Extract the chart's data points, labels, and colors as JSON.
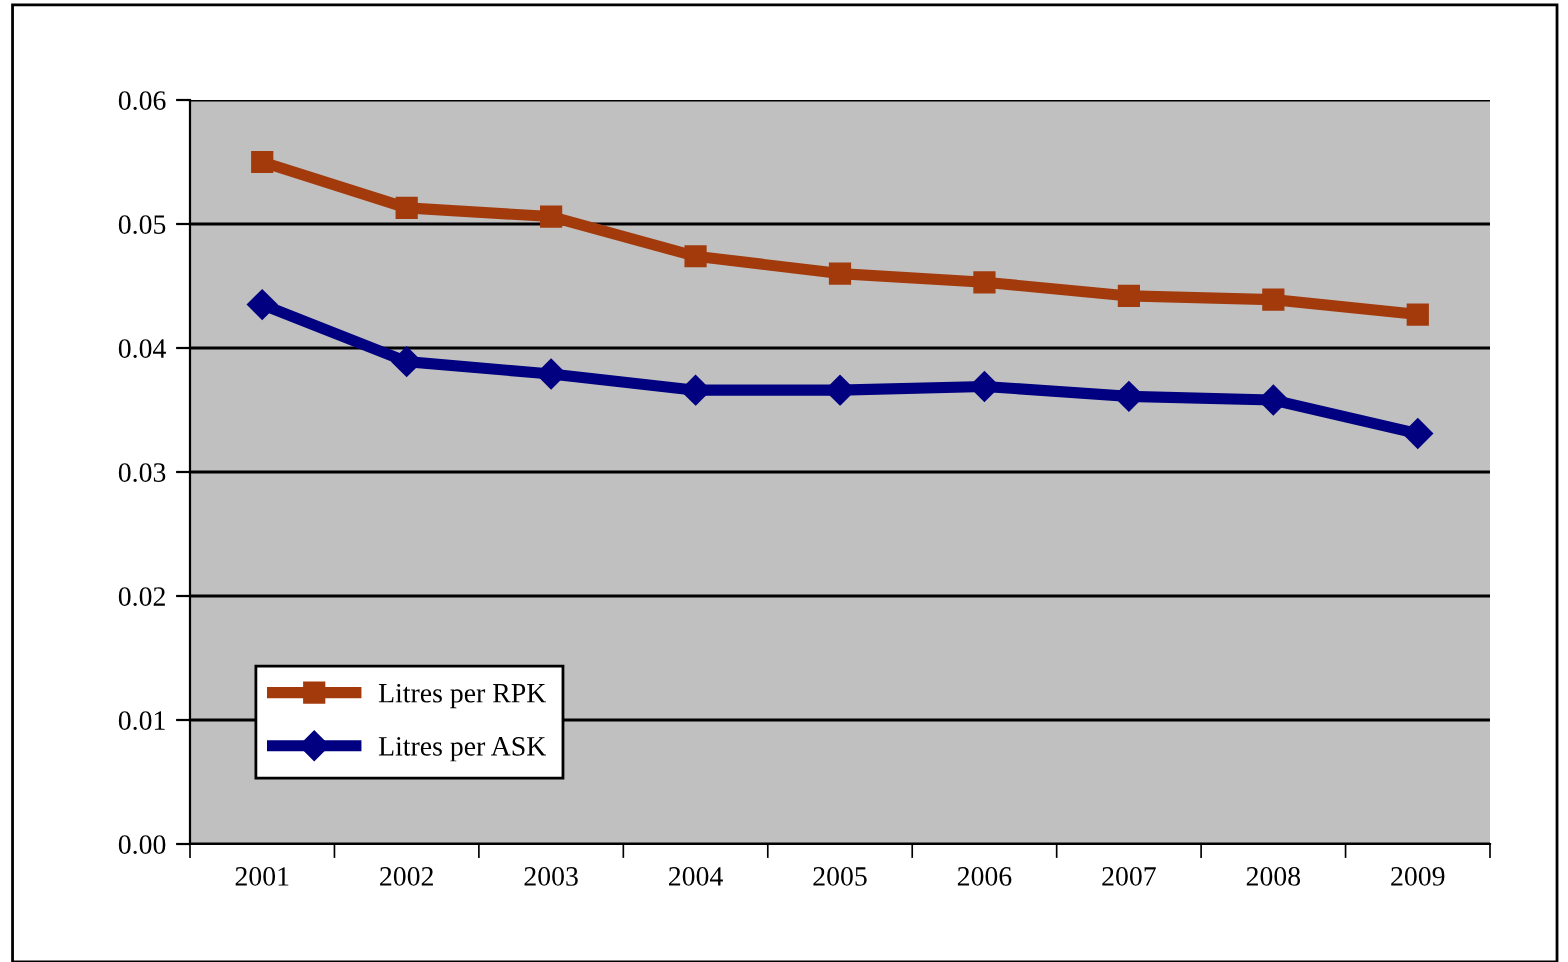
{
  "chart_data": {
    "type": "line",
    "categories": [
      "2001",
      "2002",
      "2003",
      "2004",
      "2005",
      "2006",
      "2007",
      "2008",
      "2009"
    ],
    "series": [
      {
        "name": "Litres per RPK",
        "color": "#a33a0c",
        "marker": "square",
        "values": [
          0.055,
          0.0513,
          0.0506,
          0.0474,
          0.046,
          0.0453,
          0.0442,
          0.0439,
          0.0427
        ]
      },
      {
        "name": "Litres per ASK",
        "color": "#000080",
        "marker": "diamond",
        "values": [
          0.0435,
          0.0389,
          0.0379,
          0.0366,
          0.0366,
          0.0369,
          0.0361,
          0.0358,
          0.0331
        ]
      }
    ],
    "ylim": [
      0,
      0.06
    ],
    "yticks": [
      {
        "value": 0,
        "label": "0.00"
      },
      {
        "value": 0.01,
        "label": "0.01"
      },
      {
        "value": 0.02,
        "label": "0.02"
      },
      {
        "value": 0.03,
        "label": "0.03"
      },
      {
        "value": 0.04,
        "label": "0.04"
      },
      {
        "value": 0.05,
        "label": "0.05"
      },
      {
        "value": 0.06,
        "label": "0.06"
      }
    ],
    "grid": "y",
    "legend": "bottom left",
    "line_style": "solid"
  }
}
